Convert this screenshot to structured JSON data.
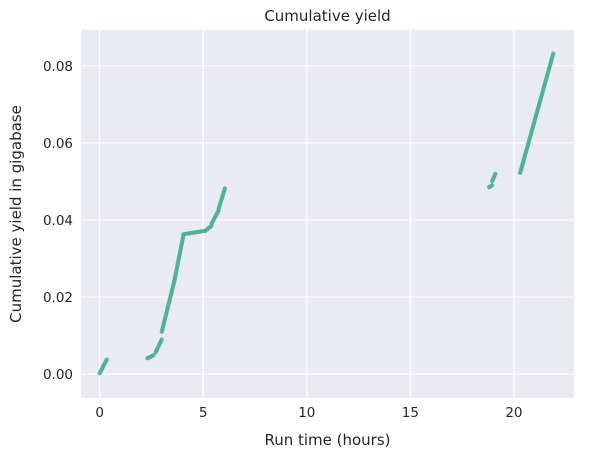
{
  "chart_data": {
    "type": "scatter",
    "title": "Cumulative yield",
    "xlabel": "Run time (hours)",
    "ylabel": "Cumulative yield in gigabase",
    "xlim": [
      -0.9,
      22.9
    ],
    "ylim": [
      -0.0062,
      0.0893
    ],
    "xticks": [
      0,
      5,
      10,
      15,
      20
    ],
    "xtick_labels": [
      "0",
      "5",
      "10",
      "15",
      "20"
    ],
    "yticks": [
      0.0,
      0.02,
      0.04,
      0.06,
      0.08
    ],
    "ytick_labels": [
      "0.00",
      "0.02",
      "0.04",
      "0.06",
      "0.08"
    ],
    "grid": true,
    "background_color": "#eaeaf2",
    "marker_color": "#4cb391",
    "series": [
      {
        "segments": [
          {
            "x_start": 0.0,
            "x_end": 0.35,
            "y_start": 0.0002,
            "y_end": 0.0038
          },
          {
            "x_start": 2.3,
            "x_end": 2.6,
            "y_start": 0.0041,
            "y_end": 0.0049
          },
          {
            "x_start": 2.7,
            "x_end": 3.0,
            "y_start": 0.0056,
            "y_end": 0.009
          },
          {
            "x_start": 3.0,
            "x_end": 3.6,
            "y_start": 0.011,
            "y_end": 0.024
          },
          {
            "x_start": 3.6,
            "x_end": 4.05,
            "y_start": 0.024,
            "y_end": 0.0362
          },
          {
            "x_start": 4.05,
            "x_end": 5.1,
            "y_start": 0.0363,
            "y_end": 0.0372
          },
          {
            "x_start": 5.1,
            "x_end": 5.4,
            "y_start": 0.0372,
            "y_end": 0.0385
          },
          {
            "x_start": 5.4,
            "x_end": 5.75,
            "y_start": 0.039,
            "y_end": 0.0425
          },
          {
            "x_start": 5.75,
            "x_end": 6.05,
            "y_start": 0.043,
            "y_end": 0.0482
          },
          {
            "x_start": 18.8,
            "x_end": 18.95,
            "y_start": 0.0485,
            "y_end": 0.049
          },
          {
            "x_start": 18.95,
            "x_end": 19.1,
            "y_start": 0.05,
            "y_end": 0.052
          },
          {
            "x_start": 20.3,
            "x_end": 21.9,
            "y_start": 0.0522,
            "y_end": 0.0832
          }
        ]
      }
    ]
  }
}
